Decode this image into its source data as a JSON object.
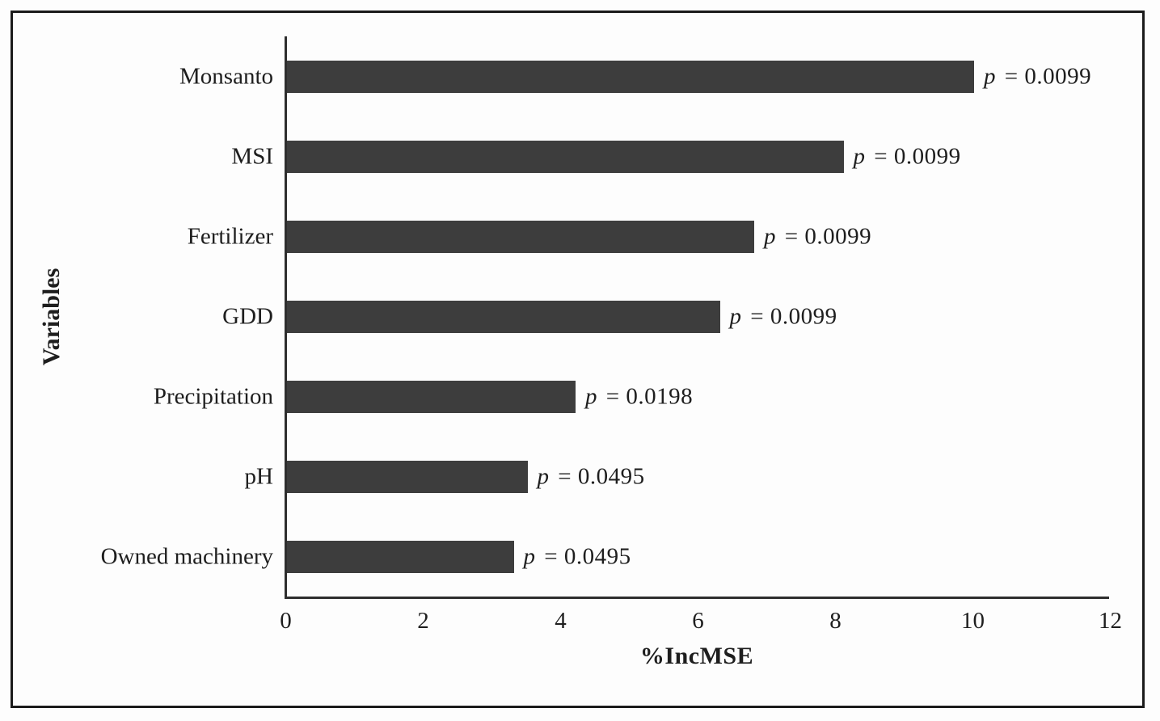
{
  "chart_data": {
    "type": "bar",
    "orientation": "horizontal",
    "title": "",
    "xlabel": "%IncMSE",
    "ylabel": "Variables",
    "xlim": [
      0,
      12
    ],
    "x_ticks": [
      0,
      2,
      4,
      6,
      8,
      10,
      12
    ],
    "grid": false,
    "legend": false,
    "bar_color": "#3d3d3d",
    "axis_color": "#2e2e2e",
    "text_color": "#1e1e1e",
    "categories": [
      "Monsanto",
      "MSI",
      "Fertilizer",
      "GDD",
      "Precipitation",
      "pH",
      "Owned machinery"
    ],
    "values": [
      10.0,
      8.1,
      6.8,
      6.3,
      4.2,
      3.5,
      3.3
    ],
    "annotations": [
      "p = 0.0099",
      "p = 0.0099",
      "p = 0.0099",
      "p = 0.0099",
      "p = 0.0198",
      "p = 0.0495",
      "p = 0.0495"
    ],
    "p_values": [
      0.0099,
      0.0099,
      0.0099,
      0.0099,
      0.0198,
      0.0495,
      0.0495
    ]
  }
}
